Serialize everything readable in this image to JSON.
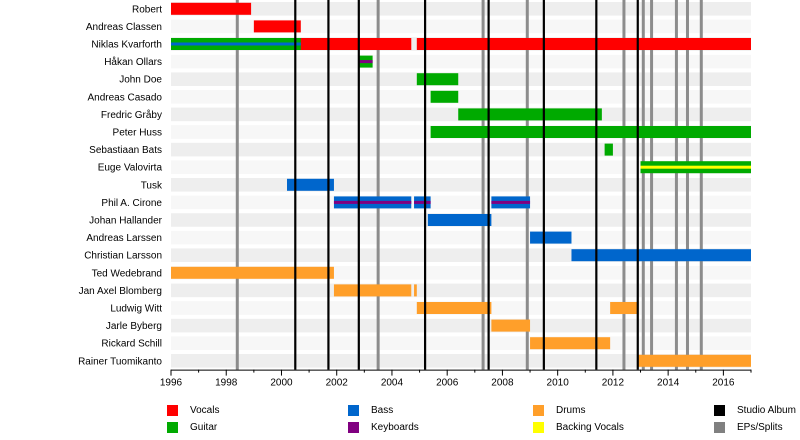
{
  "chart_data": {
    "type": "timeline",
    "title": "",
    "x_range": [
      1996,
      2017
    ],
    "ticks": [
      1996,
      1998,
      2000,
      2002,
      2004,
      2006,
      2008,
      2010,
      2012,
      2014,
      2016
    ],
    "members": [
      "Robert",
      "Andreas Classen",
      "Niklas Kvarforth",
      "Håkan Ollars",
      "John Doe",
      "Andreas Casado",
      "Fredric Gråby",
      "Peter Huss",
      "Sebastiaan Bats",
      "Euge Valovirta",
      "Tusk",
      "Phil A. Cirone",
      "Johan Hallander",
      "Andreas Larssen",
      "Christian Larsson",
      "Ted Wedebrand",
      "Jan Axel Blomberg",
      "Ludwig Witt",
      "Jarle Byberg",
      "Rickard Schill",
      "Rainer Tuomikanto"
    ],
    "roles": {
      "vocals": {
        "label": "Vocals",
        "color": "#ff0000"
      },
      "guitar": {
        "label": "Guitar",
        "color": "#00aa00"
      },
      "bass": {
        "label": "Bass",
        "color": "#0066cc"
      },
      "keyboards": {
        "label": "Keyboards",
        "color": "#800080"
      },
      "drums": {
        "label": "Drums",
        "color": "#ff9f2a"
      },
      "backing": {
        "label": "Backing Vocals",
        "color": "#ffff00"
      }
    },
    "bars": [
      {
        "member": 0,
        "role": "vocals",
        "start": 1996.0,
        "end": 1998.9
      },
      {
        "member": 1,
        "role": "vocals",
        "start": 1999.0,
        "end": 2000.7
      },
      {
        "member": 2,
        "role": "vocals",
        "start": 1996.0,
        "end": 2004.7
      },
      {
        "member": 2,
        "role": "guitar",
        "start": 1996.0,
        "end": 2000.7,
        "inner": "bass"
      },
      {
        "member": 2,
        "role": "vocals",
        "start": 2004.9,
        "end": 2017.0
      },
      {
        "member": 3,
        "role": "guitar",
        "start": 2002.8,
        "end": 2003.3,
        "inner": "keyboards"
      },
      {
        "member": 4,
        "role": "guitar",
        "start": 2004.9,
        "end": 2006.4
      },
      {
        "member": 5,
        "role": "guitar",
        "start": 2005.4,
        "end": 2006.4
      },
      {
        "member": 6,
        "role": "guitar",
        "start": 2006.4,
        "end": 2011.6
      },
      {
        "member": 7,
        "role": "guitar",
        "start": 2005.4,
        "end": 2017.0
      },
      {
        "member": 8,
        "role": "guitar",
        "start": 2011.7,
        "end": 2012.0
      },
      {
        "member": 9,
        "role": "guitar",
        "start": 2013.0,
        "end": 2017.0,
        "inner": "backing"
      },
      {
        "member": 10,
        "role": "bass",
        "start": 2000.2,
        "end": 2001.9
      },
      {
        "member": 11,
        "role": "bass",
        "start": 2001.9,
        "end": 2004.7,
        "inner": "keyboards"
      },
      {
        "member": 11,
        "role": "bass",
        "start": 2004.8,
        "end": 2005.4,
        "inner": "keyboards"
      },
      {
        "member": 11,
        "role": "bass",
        "start": 2007.6,
        "end": 2009.0,
        "inner": "keyboards"
      },
      {
        "member": 12,
        "role": "bass",
        "start": 2005.3,
        "end": 2007.6
      },
      {
        "member": 13,
        "role": "bass",
        "start": 2009.0,
        "end": 2010.5
      },
      {
        "member": 14,
        "role": "bass",
        "start": 2010.5,
        "end": 2017.0
      },
      {
        "member": 15,
        "role": "drums",
        "start": 1996.0,
        "end": 2001.9
      },
      {
        "member": 16,
        "role": "drums",
        "start": 2001.9,
        "end": 2004.7
      },
      {
        "member": 16,
        "role": "drums",
        "start": 2004.8,
        "end": 2004.9
      },
      {
        "member": 17,
        "role": "drums",
        "start": 2004.9,
        "end": 2007.6
      },
      {
        "member": 17,
        "role": "drums",
        "start": 2011.9,
        "end": 2012.9
      },
      {
        "member": 18,
        "role": "drums",
        "start": 2007.6,
        "end": 2009.0
      },
      {
        "member": 19,
        "role": "drums",
        "start": 2009.0,
        "end": 2011.9
      },
      {
        "member": 20,
        "role": "drums",
        "start": 2012.9,
        "end": 2017.0
      }
    ],
    "studio_albums": [
      2000.5,
      2001.7,
      2002.8,
      2005.2,
      2007.5,
      2009.5,
      2011.4,
      2012.9
    ],
    "eps_splits": [
      1998.4,
      2003.5,
      2007.3,
      2008.9,
      2012.4,
      2013.1,
      2013.4,
      2014.3,
      2014.7,
      2015.2
    ],
    "legend": [
      {
        "label": "Vocals",
        "color": "#ff0000"
      },
      {
        "label": "Guitar",
        "color": "#00aa00"
      },
      {
        "label": "Bass",
        "color": "#0066cc"
      },
      {
        "label": "Keyboards",
        "color": "#800080"
      },
      {
        "label": "Drums",
        "color": "#ff9f2a"
      },
      {
        "label": "Backing Vocals",
        "color": "#ffff00"
      },
      {
        "label": "Studio Album",
        "color": "#000000"
      },
      {
        "label": "EPs/Splits",
        "color": "#808080"
      }
    ]
  }
}
